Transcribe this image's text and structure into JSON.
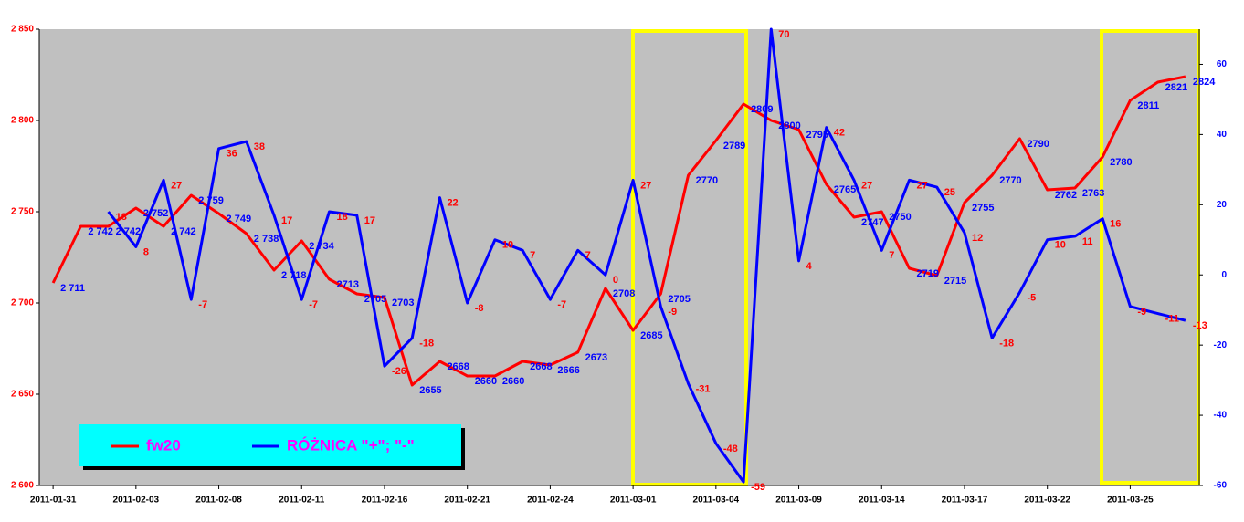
{
  "chart_data": {
    "type": "line",
    "categories": [
      "2011-01-31",
      null,
      null,
      "2011-02-03",
      null,
      null,
      "2011-02-08",
      null,
      null,
      "2011-02-11",
      null,
      null,
      "2011-02-16",
      null,
      null,
      "2011-02-21",
      null,
      null,
      "2011-02-24",
      null,
      null,
      "2011-03-01",
      null,
      null,
      "2011-03-04",
      null,
      null,
      "2011-03-09",
      null,
      null,
      "2011-03-14",
      null,
      null,
      "2011-03-17",
      null,
      null,
      "2011-03-22",
      null,
      null,
      "2011-03-25",
      null,
      null
    ],
    "series": [
      {
        "name": "fw20",
        "color": "#ff0000",
        "label_color": "#0000ff",
        "values": [
          2711,
          2742,
          2742,
          2752,
          2742,
          2759,
          2749,
          2738,
          2718,
          2734,
          2713,
          2705,
          2703,
          2655,
          2668,
          2660,
          2660,
          2668,
          2666,
          2673,
          2708,
          2685,
          2705,
          2770,
          2789,
          2809,
          2800,
          2795,
          2765,
          2747,
          2750,
          2719,
          2715,
          2755,
          2770,
          2790,
          2762,
          2763,
          2780,
          2811,
          2821,
          2824
        ],
        "value_labels": [
          "2 711",
          "2 742",
          "2 742",
          "2 752",
          "2 742",
          "2 759",
          "2 749",
          "2 738",
          "2 718",
          "2 734",
          "2713",
          "2705",
          "2703",
          "2655",
          "2668",
          "2660",
          "2660",
          "2668",
          "2666",
          "2673",
          "2708",
          "2685",
          "2705",
          "2770",
          "2789",
          "2809",
          "2800",
          "2795",
          "2765",
          "2747",
          "2750",
          "2719",
          "2715",
          "2755",
          "2770",
          "2790",
          "2762",
          "2763",
          "2780",
          "2811",
          "2821",
          "2824"
        ]
      },
      {
        "name": "RÓŻNICA \"+\"; \"-\"",
        "color": "#0000ff",
        "label_color": "#ff0000",
        "axis": "y2",
        "values": [
          null,
          null,
          18,
          8,
          27,
          -7,
          36,
          38,
          17,
          -7,
          18,
          17,
          -26,
          -18,
          22,
          -8,
          10,
          7,
          -7,
          7,
          0,
          27,
          -9,
          -31,
          -48,
          -59,
          70,
          4,
          42,
          27,
          7,
          27,
          25,
          12,
          -18,
          -5,
          10,
          11,
          16,
          -9,
          -11,
          -13
        ]
      }
    ],
    "ylim": [
      2600,
      2850
    ],
    "yticks": [
      {
        "value": 2600,
        "label": "2 600"
      },
      {
        "value": 2650,
        "label": "2 650"
      },
      {
        "value": 2700,
        "label": "2 700"
      },
      {
        "value": 2750,
        "label": "2 750"
      },
      {
        "value": 2800,
        "label": "2 800"
      },
      {
        "value": 2850,
        "label": "2 850"
      }
    ],
    "y2lim": [
      -60,
      70
    ],
    "y2ticks": [
      -60,
      -40,
      -20,
      0,
      20,
      40,
      60
    ],
    "legend": "bottom-left",
    "plot_background": "#c0c0c0"
  }
}
